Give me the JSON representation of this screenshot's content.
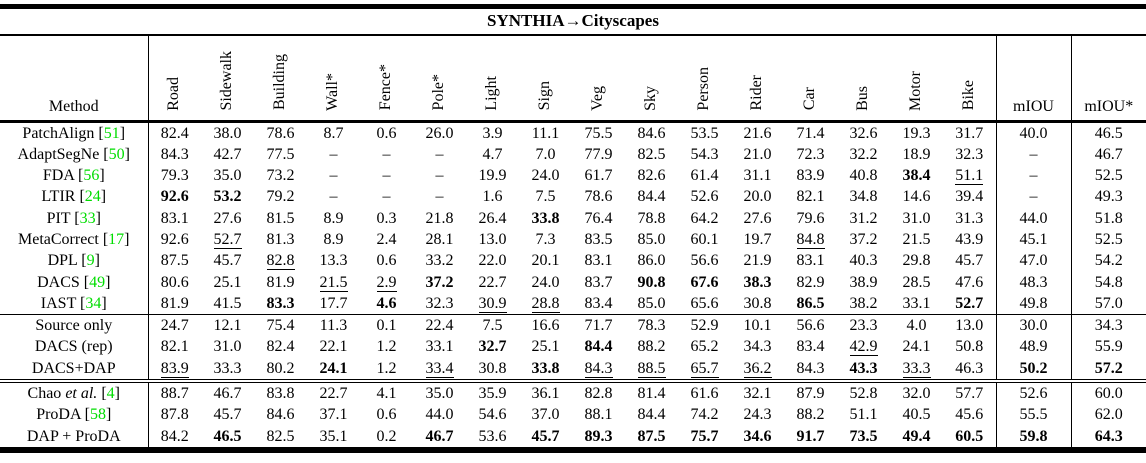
{
  "title": "SYNTHIA→Cityscapes",
  "citation_color": "#00dd00",
  "columns": {
    "method": "Method",
    "classes": [
      "Road",
      "Sidewalk",
      "Building",
      "Wall*",
      "Fence*",
      "Pole*",
      "Light",
      "Sign",
      "Veg",
      "Sky",
      "Person",
      "Rider",
      "Car",
      "Bus",
      "Motor",
      "Bike"
    ],
    "miou": "mIOU",
    "miou_star": "mIOU*"
  },
  "groups": [
    {
      "separator": "single",
      "rows": [
        {
          "method": "PatchAlign",
          "method_em": "",
          "cite": "51",
          "values": [
            "82.4",
            "38.0",
            "78.6",
            "8.7",
            "0.6",
            "26.0",
            "3.9",
            "11.1",
            "75.5",
            "84.6",
            "53.5",
            "21.6",
            "71.4",
            "32.6",
            "19.3",
            "31.7",
            "40.0",
            "46.5"
          ],
          "marks": [
            "",
            "",
            "",
            "",
            "",
            "",
            "",
            "",
            "",
            "",
            "",
            "",
            "",
            "",
            "",
            "",
            "",
            ""
          ]
        },
        {
          "method": "AdaptSegNe",
          "method_em": "",
          "cite": "50",
          "values": [
            "84.3",
            "42.7",
            "77.5",
            "–",
            "–",
            "–",
            "4.7",
            "7.0",
            "77.9",
            "82.5",
            "54.3",
            "21.0",
            "72.3",
            "32.2",
            "18.9",
            "32.3",
            "–",
            "46.7"
          ],
          "marks": [
            "",
            "",
            "",
            "",
            "",
            "",
            "",
            "",
            "",
            "",
            "",
            "",
            "",
            "",
            "",
            "",
            "",
            ""
          ]
        },
        {
          "method": "FDA",
          "method_em": "",
          "cite": "56",
          "values": [
            "79.3",
            "35.0",
            "73.2",
            "–",
            "–",
            "–",
            "19.9",
            "24.0",
            "61.7",
            "82.6",
            "61.4",
            "31.1",
            "83.9",
            "40.8",
            "38.4",
            "51.1",
            "–",
            "52.5"
          ],
          "marks": [
            "",
            "",
            "",
            "",
            "",
            "",
            "",
            "",
            "",
            "",
            "",
            "",
            "",
            "",
            "b",
            "u",
            "",
            ""
          ]
        },
        {
          "method": "LTIR",
          "method_em": "",
          "cite": "24",
          "values": [
            "92.6",
            "53.2",
            "79.2",
            "–",
            "–",
            "–",
            "1.6",
            "7.5",
            "78.6",
            "84.4",
            "52.6",
            "20.0",
            "82.1",
            "34.8",
            "14.6",
            "39.4",
            "–",
            "49.3"
          ],
          "marks": [
            "b",
            "b",
            "",
            "",
            "",
            "",
            "",
            "",
            "",
            "",
            "",
            "",
            "",
            "",
            "",
            "",
            "",
            ""
          ]
        },
        {
          "method": "PIT",
          "method_em": "",
          "cite": "33",
          "values": [
            "83.1",
            "27.6",
            "81.5",
            "8.9",
            "0.3",
            "21.8",
            "26.4",
            "33.8",
            "76.4",
            "78.8",
            "64.2",
            "27.6",
            "79.6",
            "31.2",
            "31.0",
            "31.3",
            "44.0",
            "51.8"
          ],
          "marks": [
            "",
            "",
            "",
            "",
            "",
            "",
            "",
            "b",
            "",
            "",
            "",
            "",
            "",
            "",
            "",
            "",
            "",
            ""
          ]
        },
        {
          "method": "MetaCorrect",
          "method_em": "",
          "cite": "17",
          "values": [
            "92.6",
            "52.7",
            "81.3",
            "8.9",
            "2.4",
            "28.1",
            "13.0",
            "7.3",
            "83.5",
            "85.0",
            "60.1",
            "19.7",
            "84.8",
            "37.2",
            "21.5",
            "43.9",
            "45.1",
            "52.5"
          ],
          "marks": [
            "",
            "u",
            "",
            "",
            "",
            "",
            "",
            "",
            "",
            "",
            "",
            "",
            "u",
            "",
            "",
            "",
            "",
            ""
          ]
        },
        {
          "method": "DPL",
          "method_em": "",
          "cite": "9",
          "values": [
            "87.5",
            "45.7",
            "82.8",
            "13.3",
            "0.6",
            "33.2",
            "22.0",
            "20.1",
            "83.1",
            "86.0",
            "56.6",
            "21.9",
            "83.1",
            "40.3",
            "29.8",
            "45.7",
            "47.0",
            "54.2"
          ],
          "marks": [
            "",
            "",
            "u",
            "",
            "",
            "",
            "",
            "",
            "",
            "",
            "",
            "",
            "",
            "",
            "",
            "",
            "",
            ""
          ]
        },
        {
          "method": "DACS",
          "method_em": "",
          "cite": "49",
          "values": [
            "80.6",
            "25.1",
            "81.9",
            "21.5",
            "2.9",
            "37.2",
            "22.7",
            "24.0",
            "83.7",
            "90.8",
            "67.6",
            "38.3",
            "82.9",
            "38.9",
            "28.5",
            "47.6",
            "48.3",
            "54.8"
          ],
          "marks": [
            "",
            "",
            "",
            "u",
            "u",
            "b",
            "",
            "",
            "",
            "b",
            "b",
            "b",
            "",
            "",
            "",
            "",
            "",
            ""
          ]
        },
        {
          "method": "IAST",
          "method_em": "",
          "cite": "34",
          "values": [
            "81.9",
            "41.5",
            "83.3",
            "17.7",
            "4.6",
            "32.3",
            "30.9",
            "28.8",
            "83.4",
            "85.0",
            "65.6",
            "30.8",
            "86.5",
            "38.2",
            "33.1",
            "52.7",
            "49.8",
            "57.0"
          ],
          "marks": [
            "",
            "",
            "b",
            "",
            "b",
            "",
            "u",
            "u",
            "",
            "",
            "",
            "",
            "b",
            "",
            "",
            "b",
            "",
            ""
          ]
        }
      ]
    },
    {
      "separator": "double",
      "rows": [
        {
          "method": "Source only",
          "method_em": "",
          "cite": "",
          "values": [
            "24.7",
            "12.1",
            "75.4",
            "11.3",
            "0.1",
            "22.4",
            "7.5",
            "16.6",
            "71.7",
            "78.3",
            "52.9",
            "10.1",
            "56.6",
            "23.3",
            "4.0",
            "13.0",
            "30.0",
            "34.3"
          ],
          "marks": [
            "",
            "",
            "",
            "",
            "",
            "",
            "",
            "",
            "",
            "",
            "",
            "",
            "",
            "",
            "",
            "",
            "",
            ""
          ]
        },
        {
          "method": "DACS (rep)",
          "method_em": "",
          "cite": "",
          "values": [
            "82.1",
            "31.0",
            "82.4",
            "22.1",
            "1.2",
            "33.1",
            "32.7",
            "25.1",
            "84.4",
            "88.2",
            "65.2",
            "34.3",
            "83.4",
            "42.9",
            "24.1",
            "50.8",
            "48.9",
            "55.9"
          ],
          "marks": [
            "",
            "",
            "",
            "",
            "",
            "",
            "b",
            "",
            "b",
            "",
            "",
            "",
            "",
            "u",
            "",
            "",
            "",
            ""
          ]
        },
        {
          "method": "DACS+DAP",
          "method_em": "",
          "cite": "",
          "values": [
            "83.9",
            "33.3",
            "80.2",
            "24.1",
            "1.2",
            "33.4",
            "30.8",
            "33.8",
            "84.3",
            "88.5",
            "65.7",
            "36.2",
            "84.3",
            "43.3",
            "33.3",
            "46.3",
            "50.2",
            "57.2"
          ],
          "marks": [
            "u",
            "",
            "",
            "b",
            "",
            "u",
            "",
            "b",
            "u",
            "u",
            "u",
            "u",
            "",
            "b",
            "u",
            "",
            "b",
            "b"
          ]
        }
      ]
    },
    {
      "separator": "none",
      "rows": [
        {
          "method": "Chao",
          "method_em": "et al.",
          "cite": "4",
          "values": [
            "88.7",
            "46.7",
            "83.8",
            "22.7",
            "4.1",
            "35.0",
            "35.9",
            "36.1",
            "82.8",
            "81.4",
            "61.6",
            "32.1",
            "87.9",
            "52.8",
            "32.0",
            "57.7",
            "52.6",
            "60.0"
          ],
          "marks": [
            "",
            "",
            "",
            "",
            "",
            "",
            "",
            "",
            "",
            "",
            "",
            "",
            "",
            "",
            "",
            "",
            "",
            ""
          ]
        },
        {
          "method": "ProDA",
          "method_em": "",
          "cite": "58",
          "values": [
            "87.8",
            "45.7",
            "84.6",
            "37.1",
            "0.6",
            "44.0",
            "54.6",
            "37.0",
            "88.1",
            "84.4",
            "74.2",
            "24.3",
            "88.2",
            "51.1",
            "40.5",
            "45.6",
            "55.5",
            "62.0"
          ],
          "marks": [
            "",
            "",
            "",
            "",
            "",
            "",
            "",
            "",
            "",
            "",
            "",
            "",
            "",
            "",
            "",
            "",
            "",
            ""
          ]
        },
        {
          "method": "DAP + ProDA",
          "method_em": "",
          "cite": "",
          "values": [
            "84.2",
            "46.5",
            "82.5",
            "35.1",
            "0.2",
            "46.7",
            "53.6",
            "45.7",
            "89.3",
            "87.5",
            "75.7",
            "34.6",
            "91.7",
            "73.5",
            "49.4",
            "60.5",
            "59.8",
            "64.3"
          ],
          "marks": [
            "",
            "b",
            "",
            "",
            "",
            "b",
            "",
            "b",
            "b",
            "b",
            "b",
            "b",
            "b",
            "b",
            "b",
            "b",
            "b",
            "b"
          ]
        }
      ]
    }
  ]
}
